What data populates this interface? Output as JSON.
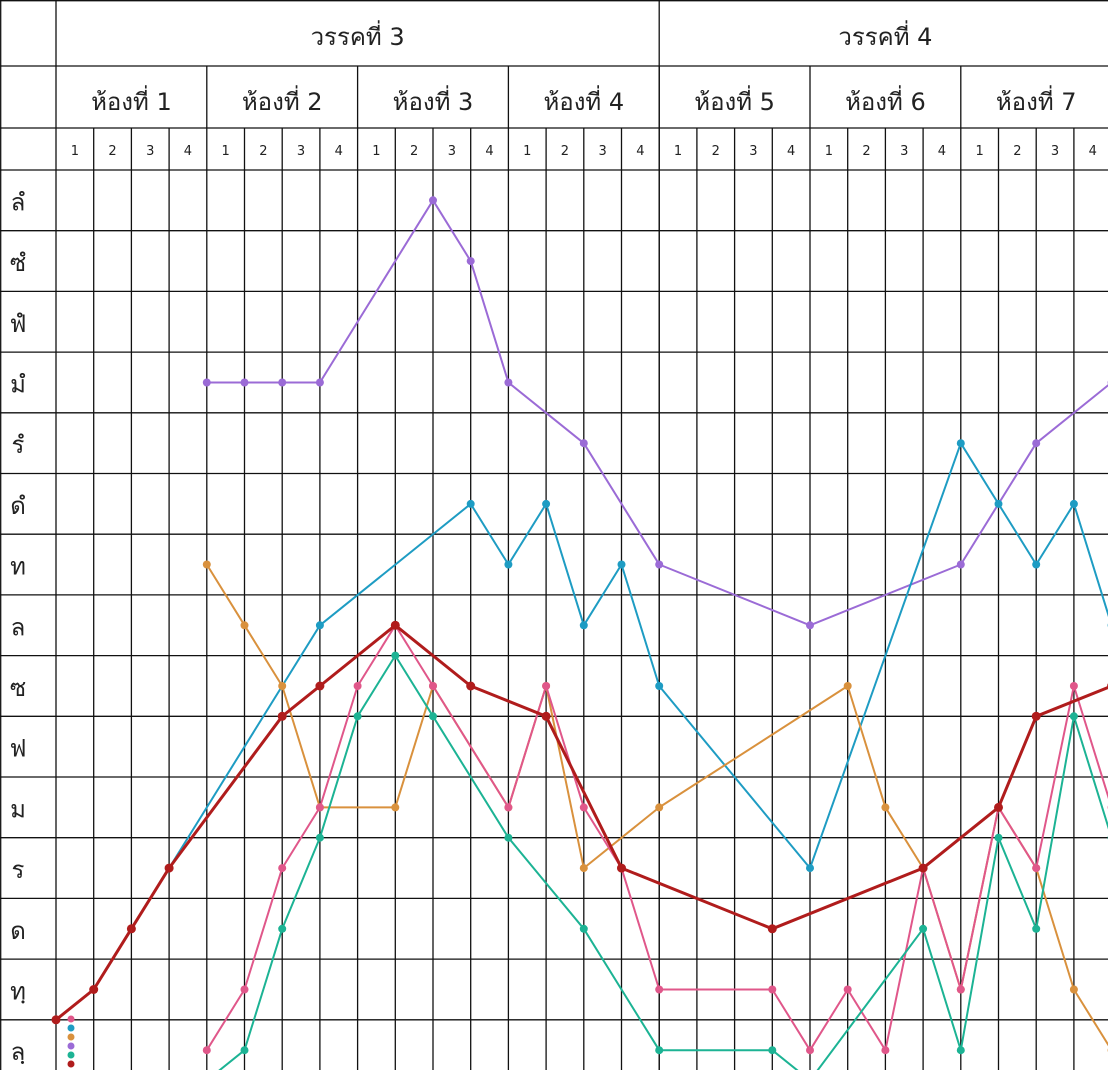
{
  "chart_data": {
    "type": "line",
    "title": "",
    "xlabel": "",
    "ylabel": "",
    "sections": [
      {
        "label": "วรรคที่ 3",
        "rooms": [
          0,
          1,
          2,
          3
        ]
      },
      {
        "label": "วรรคที่ 4",
        "rooms": [
          4,
          5,
          6
        ]
      }
    ],
    "rooms": [
      "ห้องที่ 1",
      "ห้องที่ 2",
      "ห้องที่ 3",
      "ห้องที่ 4",
      "ห้องที่ 5",
      "ห้องที่ 6",
      "ห้องที่ 7"
    ],
    "beats": [
      "1",
      "2",
      "3",
      "4"
    ],
    "y_levels": [
      "ลํ",
      "ซํ",
      "ฟํ",
      "มํ",
      "รํ",
      "ดํ",
      "ท",
      "ล",
      "ซ",
      "ฟ",
      "ม",
      "ร",
      "ด",
      "ทฺ",
      "ลฺ"
    ],
    "x_index_note_free": true,
    "series": [
      {
        "color": "#9b6bd6",
        "width": 2,
        "points": [
          [
            4,
            3
          ],
          [
            5,
            3
          ],
          [
            6,
            3
          ],
          [
            7,
            3
          ],
          [
            10,
            0
          ],
          [
            11,
            1
          ],
          [
            12,
            3
          ],
          [
            14,
            4
          ],
          [
            16,
            6
          ],
          [
            20,
            7
          ],
          [
            24,
            6
          ],
          [
            26,
            4
          ],
          [
            28,
            3
          ]
        ]
      },
      {
        "color": "#1e9cc3",
        "width": 2,
        "points": [
          [
            3,
            11
          ],
          [
            7,
            7
          ],
          [
            11,
            5
          ],
          [
            12,
            6
          ],
          [
            13,
            5
          ],
          [
            14,
            7
          ],
          [
            15,
            6
          ],
          [
            16,
            8
          ],
          [
            20,
            11
          ],
          [
            24,
            4
          ],
          [
            25,
            5
          ],
          [
            26,
            6
          ],
          [
            27,
            5
          ],
          [
            28,
            7
          ]
        ]
      },
      {
        "color": "#d9913d",
        "width": 2,
        "points": [
          [
            4,
            6
          ],
          [
            5,
            7
          ],
          [
            6,
            8
          ],
          [
            7,
            10
          ],
          [
            9,
            10
          ],
          [
            10,
            8
          ],
          [
            12,
            10
          ],
          [
            13,
            8
          ],
          [
            14,
            11
          ],
          [
            16,
            10
          ],
          [
            21,
            8
          ],
          [
            22,
            10
          ],
          [
            23,
            11
          ],
          [
            24,
            13
          ],
          [
            25,
            10
          ],
          [
            26,
            11
          ],
          [
            27,
            13
          ],
          [
            28,
            14
          ]
        ]
      },
      {
        "color": "#e0578a",
        "width": 2,
        "points": [
          [
            4,
            14
          ],
          [
            5,
            13
          ],
          [
            6,
            11
          ],
          [
            7,
            10
          ],
          [
            8,
            8
          ],
          [
            9,
            7
          ],
          [
            10,
            8
          ],
          [
            12,
            10
          ],
          [
            13,
            8
          ],
          [
            14,
            10
          ],
          [
            15,
            11
          ],
          [
            16,
            13
          ],
          [
            19,
            13
          ],
          [
            20,
            14
          ],
          [
            21,
            13
          ],
          [
            22,
            14
          ],
          [
            23,
            11
          ],
          [
            24,
            13
          ],
          [
            25,
            10
          ],
          [
            26,
            11
          ],
          [
            27,
            8
          ],
          [
            28,
            10
          ]
        ]
      },
      {
        "color": "#1cb394",
        "width": 2,
        "points": [
          [
            4,
            14.5
          ],
          [
            5,
            14
          ],
          [
            6,
            12
          ],
          [
            7,
            10.5
          ],
          [
            8,
            8.5
          ],
          [
            9,
            7.5
          ],
          [
            10,
            8.5
          ],
          [
            12,
            10.5
          ],
          [
            14,
            12
          ],
          [
            16,
            14
          ],
          [
            19,
            14
          ],
          [
            20,
            14.5
          ],
          [
            23,
            12
          ],
          [
            24,
            14
          ],
          [
            25,
            10.5
          ],
          [
            26,
            12
          ],
          [
            27,
            8.5
          ],
          [
            28,
            10.5
          ]
        ]
      },
      {
        "color": "#b01c1c",
        "width": 3,
        "points": [
          [
            0,
            13.5
          ],
          [
            1,
            13
          ],
          [
            2,
            12
          ],
          [
            3,
            11
          ],
          [
            6,
            8.5
          ],
          [
            7,
            8
          ],
          [
            9,
            7
          ],
          [
            11,
            8
          ],
          [
            13,
            8.5
          ],
          [
            15,
            11
          ],
          [
            19,
            12
          ],
          [
            23,
            11
          ],
          [
            25,
            10
          ],
          [
            26,
            8.5
          ],
          [
            28,
            8
          ]
        ]
      }
    ],
    "legend": {
      "placement": "bottom-left",
      "colors": [
        "#e0578a",
        "#1e9cc3",
        "#d9913d",
        "#9b6bd6",
        "#1cb394",
        "#b01c1c"
      ]
    },
    "grid": true
  }
}
